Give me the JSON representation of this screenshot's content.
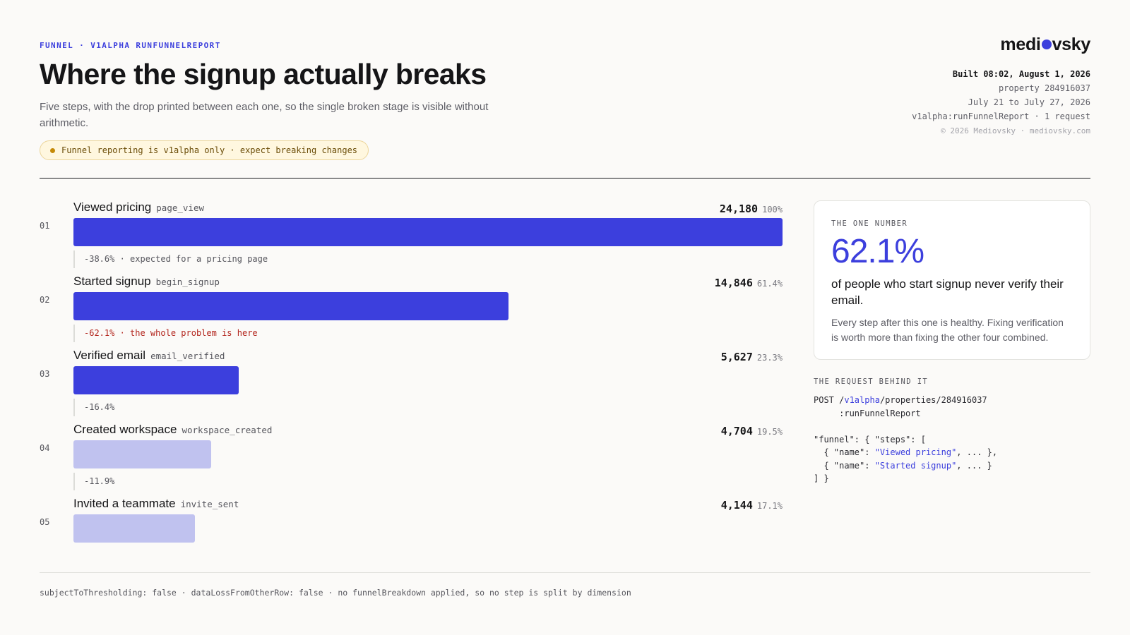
{
  "header": {
    "eyebrow": "FUNNEL · V1ALPHA RUNFUNNELREPORT",
    "title_light": "Where the signup ",
    "title_bold": "actually breaks",
    "subtitle": "Five steps, with the drop printed between each one, so the single broken stage is visible without arithmetic.",
    "warning": "Funnel reporting is v1alpha only · expect breaking changes"
  },
  "brand": {
    "logo_left": "medi",
    "logo_right": "vsky"
  },
  "meta": {
    "built": "Built 08:02, August 1, 2026",
    "property": "property 284916037",
    "range": "July 21 to July 27, 2026",
    "request": "v1alpha:runFunnelReport · 1 request",
    "copyright": "© 2026 Mediovsky · mediovsky.com"
  },
  "chart_data": {
    "type": "bar",
    "orientation": "horizontal",
    "categories": [
      "Viewed pricing",
      "Started signup",
      "Verified email",
      "Created workspace",
      "Invited a teammate"
    ],
    "values": [
      24180,
      14846,
      5627,
      4704,
      4144
    ],
    "xlim": [
      0,
      24180
    ],
    "steps": [
      {
        "num": "01",
        "name": "Viewed pricing",
        "event": "page_view",
        "count": 24180,
        "count_label": "24,180",
        "pct": "100%",
        "emphasis": "strong",
        "drop": "-38.6% · expected for a pricing page",
        "drop_bad": false
      },
      {
        "num": "02",
        "name": "Started signup",
        "event": "begin_signup",
        "count": 14846,
        "count_label": "14,846",
        "pct": "61.4%",
        "emphasis": "strong",
        "drop": "-62.1% · the whole problem is here",
        "drop_bad": true
      },
      {
        "num": "03",
        "name": "Verified email",
        "event": "email_verified",
        "count": 5627,
        "count_label": "5,627",
        "pct": "23.3%",
        "emphasis": "strong",
        "drop": "-16.4%",
        "drop_bad": false
      },
      {
        "num": "04",
        "name": "Created workspace",
        "event": "workspace_created",
        "count": 4704,
        "count_label": "4,704",
        "pct": "19.5%",
        "emphasis": "soft",
        "drop": "-11.9%",
        "drop_bad": false
      },
      {
        "num": "05",
        "name": "Invited a teammate",
        "event": "invite_sent",
        "count": 4144,
        "count_label": "4,144",
        "pct": "17.1%",
        "emphasis": "soft",
        "drop": "",
        "drop_bad": false
      }
    ],
    "colors": {
      "strong": "#3c3fdd",
      "soft": "#c0c2ef",
      "drop_bad": "#b3261e"
    }
  },
  "card": {
    "eyebrow": "THE ONE NUMBER",
    "number": "62.1%",
    "lead": "of people who start signup never verify their email.",
    "body": "Every step after this one is healthy. Fixing verification is worth more than fixing the other four combined."
  },
  "request_panel": {
    "title": "THE REQUEST BEHIND IT",
    "line1_method": "POST /",
    "line1_version": "v1alpha",
    "line1_path": "/properties/284916037",
    "line2": "     :runFunnelReport",
    "line4": "\"funnel\": { \"steps\": [",
    "line5_pre": "  { \"name\": ",
    "line5_val": "\"Viewed pricing\"",
    "line5_post": ", ... },",
    "line6_pre": "  { \"name\": ",
    "line6_val": "\"Started signup\"",
    "line6_post": ", ... }",
    "line7": "] }"
  },
  "footer": "subjectToThresholding: false · dataLossFromOtherRow: false · no funnelBreakdown applied, so no step is split by dimension"
}
